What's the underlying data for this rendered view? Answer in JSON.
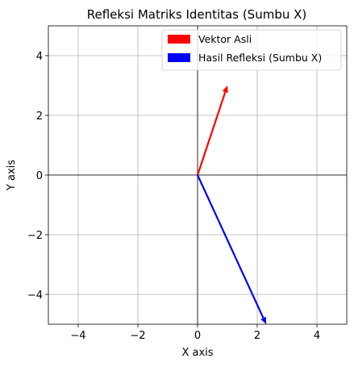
{
  "chart_data": {
    "type": "quiver",
    "title": "Refleksi Matriks Identitas (Sumbu X)",
    "xlabel": "X axis",
    "ylabel": "Y axis",
    "xlim": [
      -5,
      5
    ],
    "ylim": [
      -5,
      5
    ],
    "xticks": [
      -4,
      -2,
      0,
      2,
      4
    ],
    "yticks": [
      -4,
      -2,
      0,
      2,
      4
    ],
    "xtick_labels": [
      "−4",
      "−2",
      "0",
      "2",
      "4"
    ],
    "ytick_labels": [
      "−4",
      "−2",
      "0",
      "2",
      "4"
    ],
    "grid": true,
    "legend_position": "top-right",
    "series": [
      {
        "name": "Vektor Asli",
        "color": "#ff0000",
        "origin": [
          0,
          0
        ],
        "vector": [
          1,
          3
        ]
      },
      {
        "name": "Hasil Refleksi (Sumbu X)",
        "color": "#0000ff",
        "origin": [
          0,
          0
        ],
        "vector": [
          2.3,
          -5
        ]
      }
    ]
  }
}
